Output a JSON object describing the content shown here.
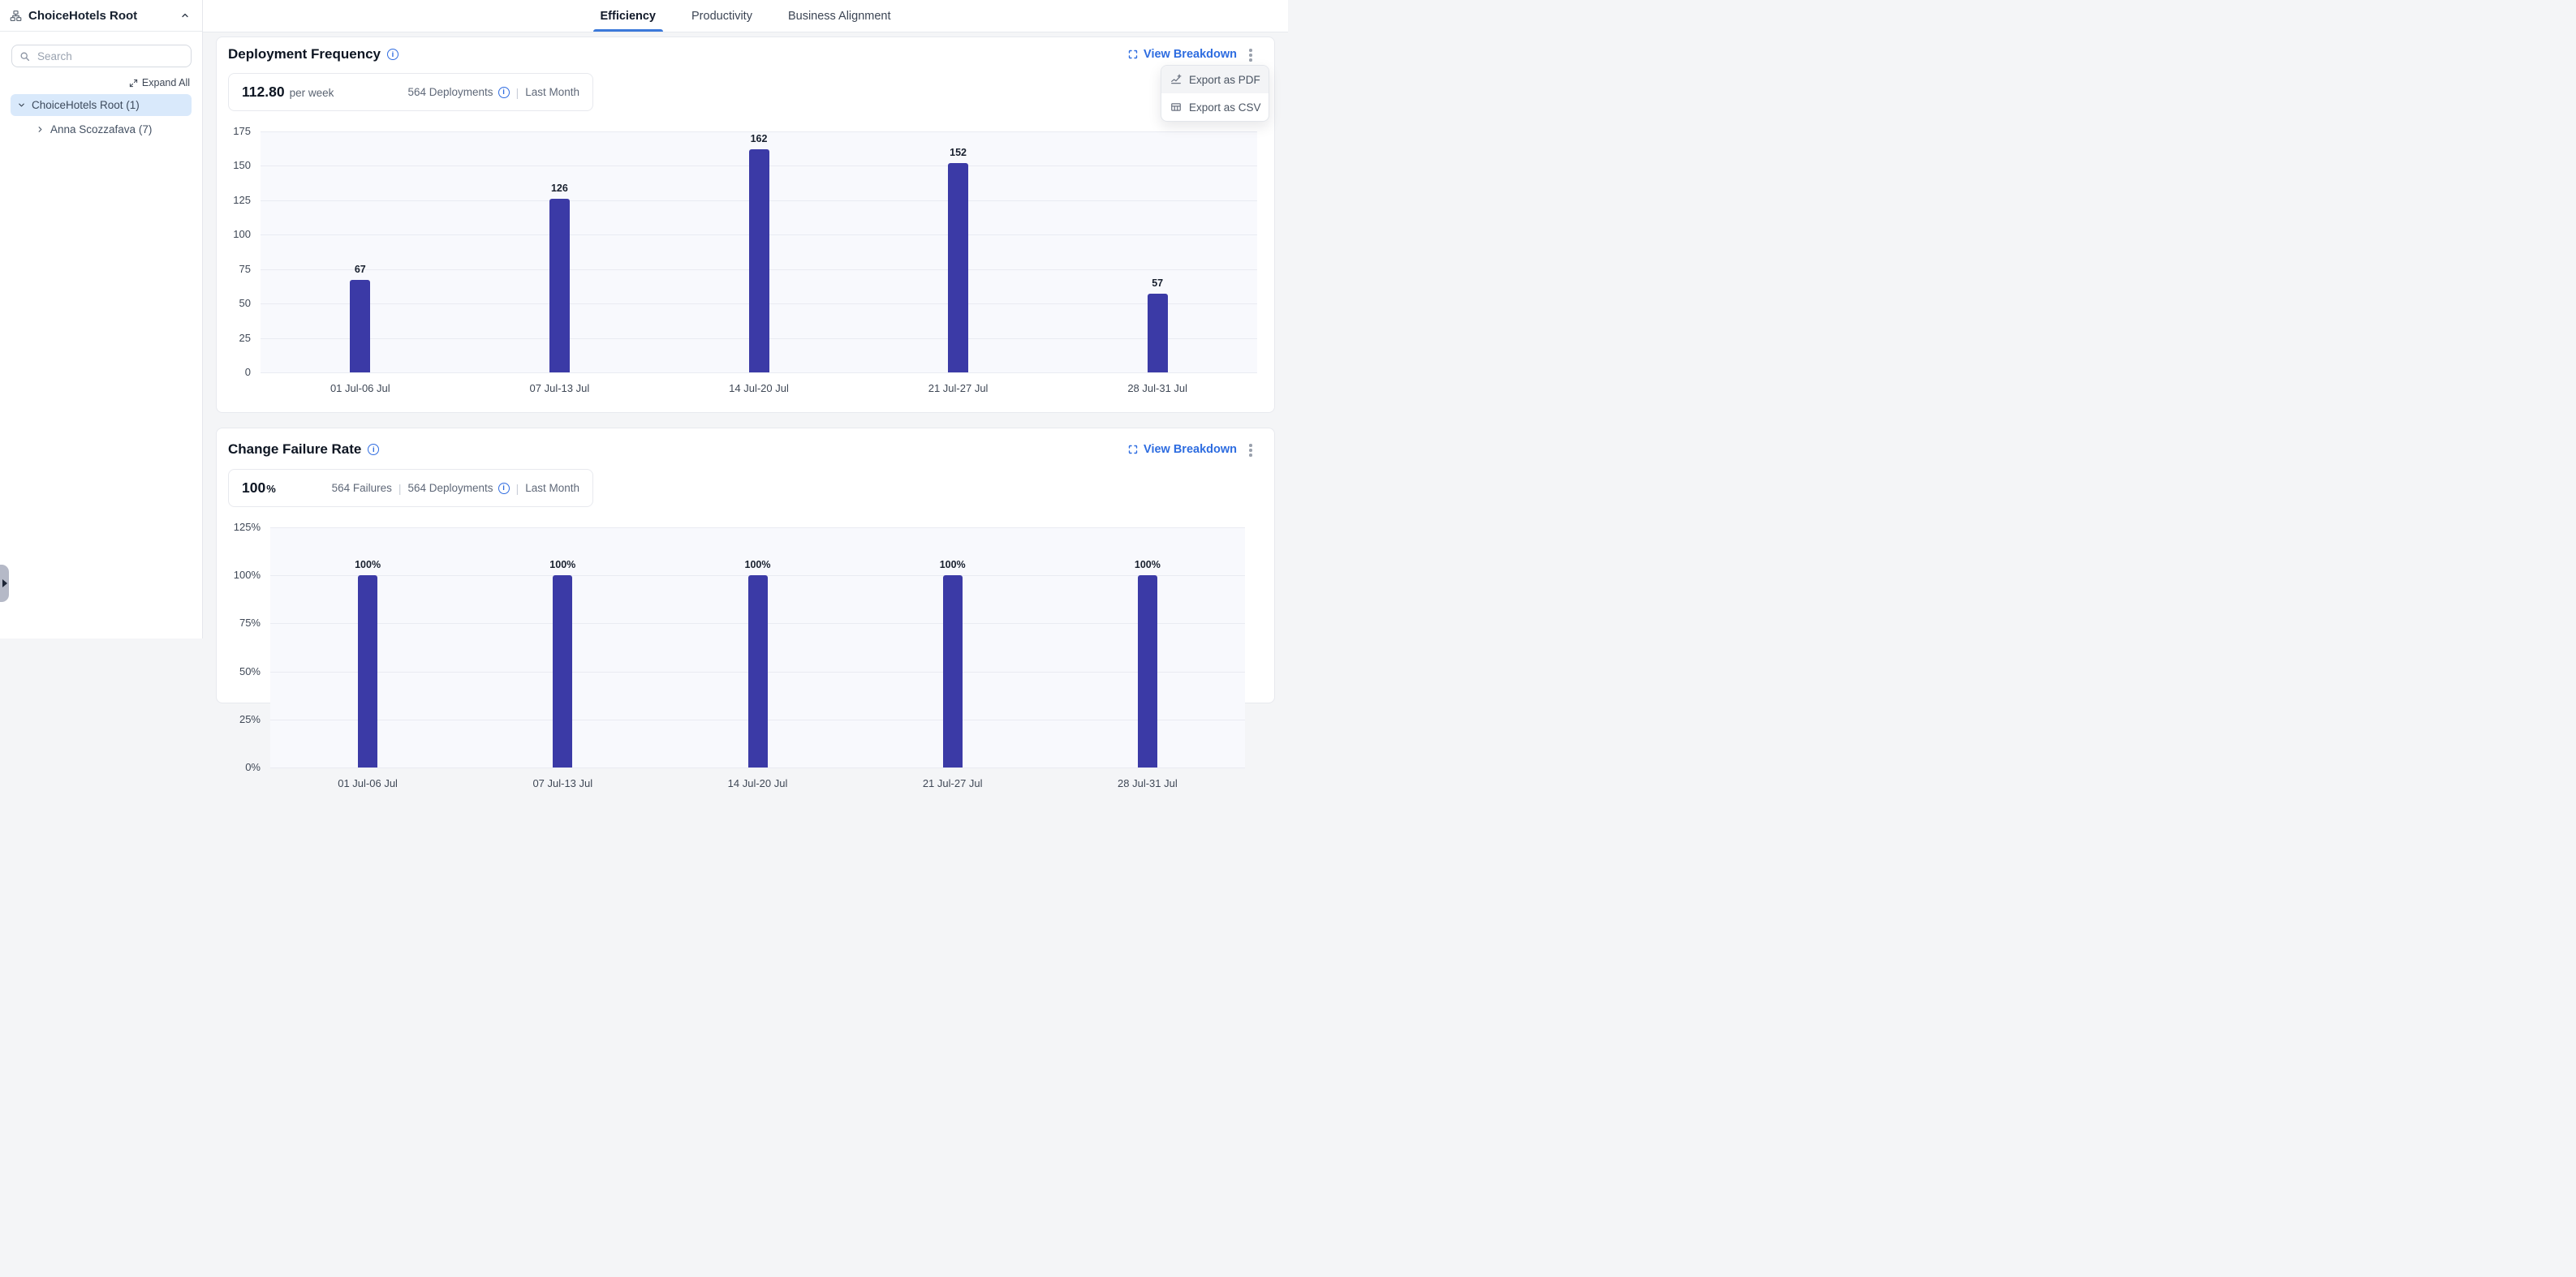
{
  "sidebar": {
    "title": "ChoiceHotels Root",
    "search": {
      "placeholder": "Search"
    },
    "expand_all_label": "Expand All",
    "tree": [
      {
        "label": "ChoiceHotels Root (1)",
        "level": 0,
        "state": "expanded",
        "selected": true
      },
      {
        "label": "Anna Scozzafava (7)",
        "level": 1,
        "state": "collapsed",
        "selected": false
      }
    ]
  },
  "topbar": {
    "tabs": [
      {
        "label": "Efficiency",
        "active": true
      },
      {
        "label": "Productivity",
        "active": false
      },
      {
        "label": "Business Alignment",
        "active": false
      }
    ]
  },
  "cards": [
    {
      "title": "Deployment Frequency",
      "view_breakdown_label": "View Breakdown",
      "stat": {
        "value": "112.80",
        "unit": "per week",
        "meta": [
          {
            "text": "564 Deployments",
            "info": true
          },
          {
            "text": "Last Month",
            "info": false
          }
        ]
      }
    },
    {
      "title": "Change Failure Rate",
      "view_breakdown_label": "View Breakdown",
      "stat": {
        "value": "100",
        "unit": "%",
        "meta": [
          {
            "text": "564 Failures",
            "info": false
          },
          {
            "text": "564 Deployments",
            "info": true
          },
          {
            "text": "Last Month",
            "info": false
          }
        ]
      }
    }
  ],
  "context_menu": {
    "items": [
      {
        "label": "Export as PDF",
        "icon": "chart-export-icon",
        "highlighted": true
      },
      {
        "label": "Export as CSV",
        "icon": "table-icon",
        "highlighted": false
      }
    ]
  },
  "chart_data": [
    {
      "type": "bar",
      "title": "Deployment Frequency",
      "categories": [
        "01 Jul-06 Jul",
        "07 Jul-13 Jul",
        "14 Jul-20 Jul",
        "21 Jul-27 Jul",
        "28 Jul-31 Jul"
      ],
      "values": [
        67,
        126,
        162,
        152,
        57
      ],
      "xlabel": "",
      "ylabel": "",
      "ylim": [
        0,
        175
      ],
      "yticks": [
        0,
        25,
        50,
        75,
        100,
        125,
        150,
        175
      ],
      "grid": true,
      "legend": false,
      "value_labels": true,
      "bar_color": "#3b3aa6"
    },
    {
      "type": "bar",
      "title": "Change Failure Rate",
      "categories": [
        "01 Jul-06 Jul",
        "07 Jul-13 Jul",
        "14 Jul-20 Jul",
        "21 Jul-27 Jul",
        "28 Jul-31 Jul"
      ],
      "values": [
        100,
        100,
        100,
        100,
        100
      ],
      "value_suffix": "%",
      "xlabel": "",
      "ylabel": "",
      "ylim": [
        0,
        125
      ],
      "yticks": [
        0,
        25,
        50,
        75,
        100,
        125
      ],
      "grid": true,
      "legend": false,
      "value_labels": true,
      "bar_color": "#3b3aa6",
      "note": "chart clipped at bottom edge of viewport; only ticks 125%, 100%, 75% visible"
    }
  ],
  "colors": {
    "accent_blue": "#2d6ce0",
    "tab_underline": "#3b79da",
    "bar": "#3b3aa6",
    "selected_row_bg": "#d9e9fb",
    "plot_bg": "#f8f9fd",
    "gridline": "#e9ebf2"
  }
}
